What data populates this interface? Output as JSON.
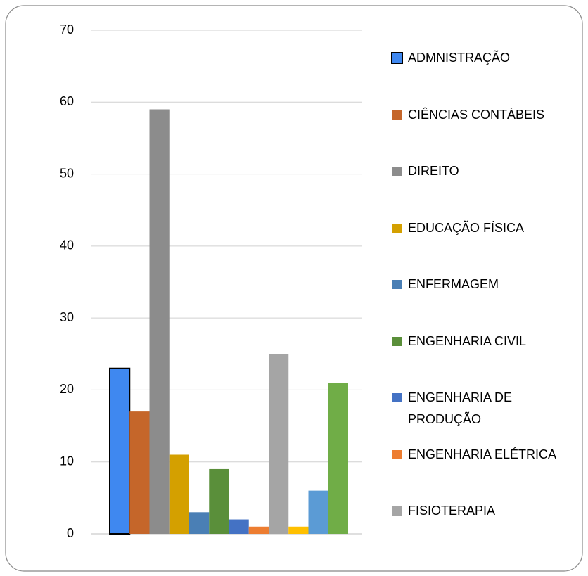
{
  "chart_data": {
    "type": "bar",
    "series": [
      {
        "name": "ADMNISTRAÇÃO",
        "color": "#3f88f0",
        "values": [
          23
        ]
      },
      {
        "name": "CIÊNCIAS CONTÁBEIS",
        "color": "#c5662a",
        "values": [
          17
        ]
      },
      {
        "name": "DIREITO",
        "color": "#8c8c8c",
        "values": [
          59
        ]
      },
      {
        "name": "EDUCAÇÃO FÍSICA",
        "color": "#d4a000",
        "values": [
          11
        ]
      },
      {
        "name": "ENFERMAGEM",
        "color": "#4a7fb5",
        "values": [
          3
        ]
      },
      {
        "name": "ENGENHARIA CIVIL",
        "color": "#5a8f3a",
        "values": [
          9
        ]
      },
      {
        "name": "ENGENHARIA DE PRODUÇÃO",
        "color": "#4472c4",
        "values": [
          2
        ]
      },
      {
        "name": "ENGENHARIA ELÉTRICA",
        "color": "#ed7d31",
        "values": [
          1
        ]
      },
      {
        "name": "FISIOTERAPIA",
        "color": "#a5a5a5",
        "values": [
          25
        ]
      },
      {
        "name": null,
        "color": "#ffc000",
        "values": [
          1
        ]
      },
      {
        "name": null,
        "color": "#5b9bd5",
        "values": [
          6
        ]
      },
      {
        "name": null,
        "color": "#70ad47",
        "values": [
          21
        ]
      }
    ],
    "ylim": [
      0,
      70
    ],
    "yticks": [
      0,
      10,
      20,
      30,
      40,
      50,
      60,
      70
    ],
    "grid": true,
    "legend": "right"
  }
}
